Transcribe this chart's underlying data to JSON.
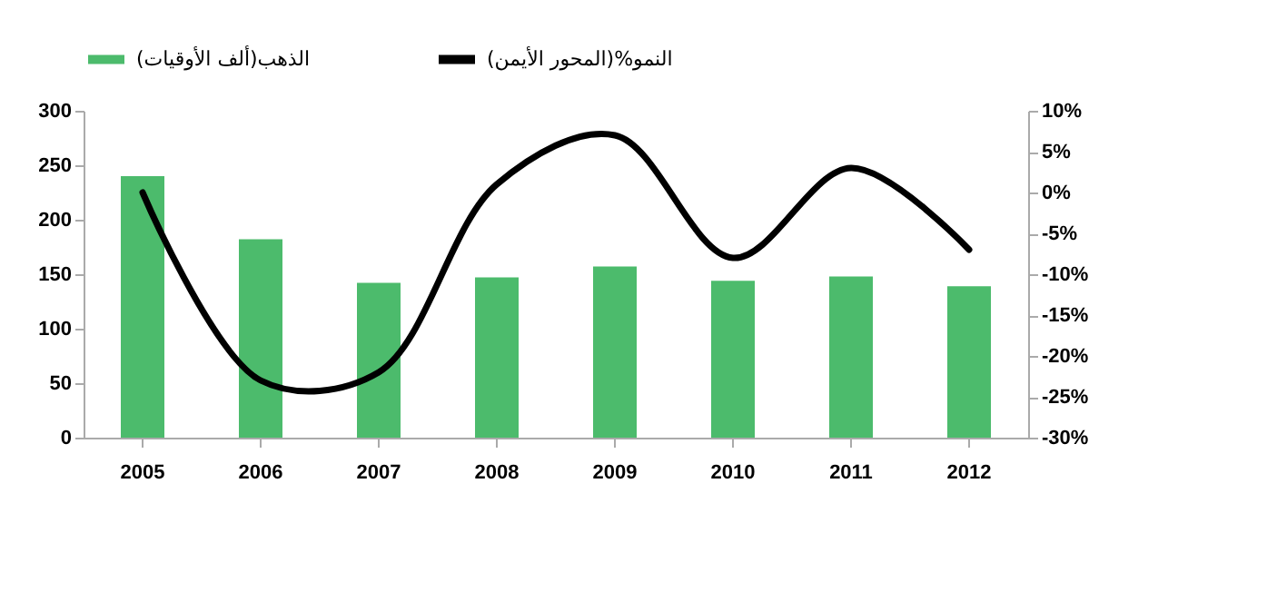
{
  "chart_data": {
    "type": "bar",
    "categories": [
      "2005",
      "2006",
      "2007",
      "2008",
      "2009",
      "2010",
      "2011",
      "2012"
    ],
    "series": [
      {
        "name": "الذهب(ألف الأوقيات)",
        "color": "#4cbb6c",
        "values": [
          240,
          182,
          142,
          147,
          157,
          144,
          148,
          139
        ]
      },
      {
        "name": "النمو%(المحور الأيمن)",
        "type": "line",
        "axis": "y2",
        "color": "#000000",
        "values": [
          0,
          -23,
          -22,
          1,
          7,
          -8,
          3,
          -7
        ]
      }
    ],
    "ylim": [
      0,
      300
    ],
    "yticks": [
      0,
      50,
      100,
      150,
      200,
      250,
      300
    ],
    "y2lim": [
      -30,
      10
    ],
    "y2ticks": [
      {
        "value": -30,
        "label": "-30%"
      },
      {
        "value": -25,
        "label": "-25%"
      },
      {
        "value": -20,
        "label": "-20%"
      },
      {
        "value": -15,
        "label": "-15%"
      },
      {
        "value": -10,
        "label": "-10%"
      },
      {
        "value": -5,
        "label": "-5%"
      },
      {
        "value": 0,
        "label": "0%"
      },
      {
        "value": 5,
        "label": "5%"
      },
      {
        "value": 10,
        "label": "10%"
      }
    ],
    "grid": false,
    "legend": "top",
    "marker": "none",
    "line_style": "solid"
  }
}
